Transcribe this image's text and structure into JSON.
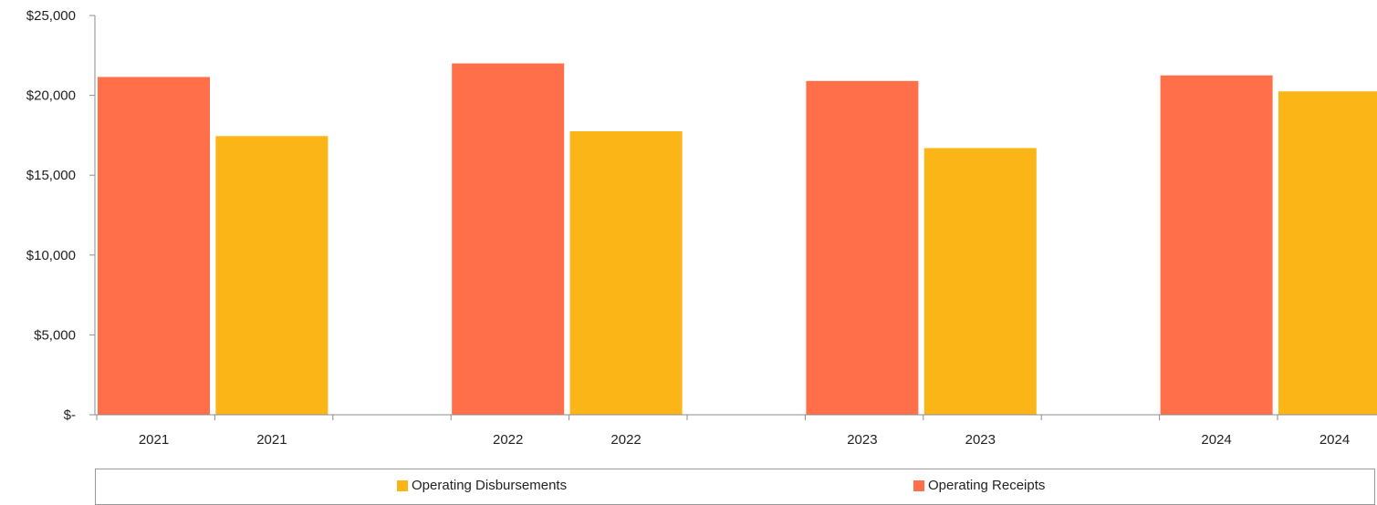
{
  "chart_data": {
    "type": "bar",
    "categories": [
      "2021",
      "2021",
      "2022",
      "2022",
      "2023",
      "2023",
      "2024",
      "2024"
    ],
    "series": [
      {
        "name": "Operating Receipts",
        "color": "#FF6F4A",
        "values": [
          21150,
          null,
          22000,
          null,
          20900,
          null,
          21250,
          null
        ]
      },
      {
        "name": "Operating Disbursements",
        "color": "#FCB517",
        "values": [
          null,
          17450,
          null,
          17750,
          null,
          16700,
          null,
          20250
        ]
      }
    ],
    "title": "",
    "xlabel": "",
    "ylabel": "",
    "ylim": [
      0,
      25000
    ],
    "y_ticks": [
      0,
      5000,
      10000,
      15000,
      20000,
      25000
    ],
    "y_tick_labels": [
      "$-",
      "$5,000",
      "$10,000",
      "$15,000",
      "$20,000",
      "$25,000"
    ],
    "grid": false,
    "legend_position": "bottom"
  },
  "legend": {
    "items": [
      {
        "label": "Operating Disbursements",
        "color": "#FCB517"
      },
      {
        "label": "Operating Receipts",
        "color": "#FF6F4A"
      }
    ]
  }
}
